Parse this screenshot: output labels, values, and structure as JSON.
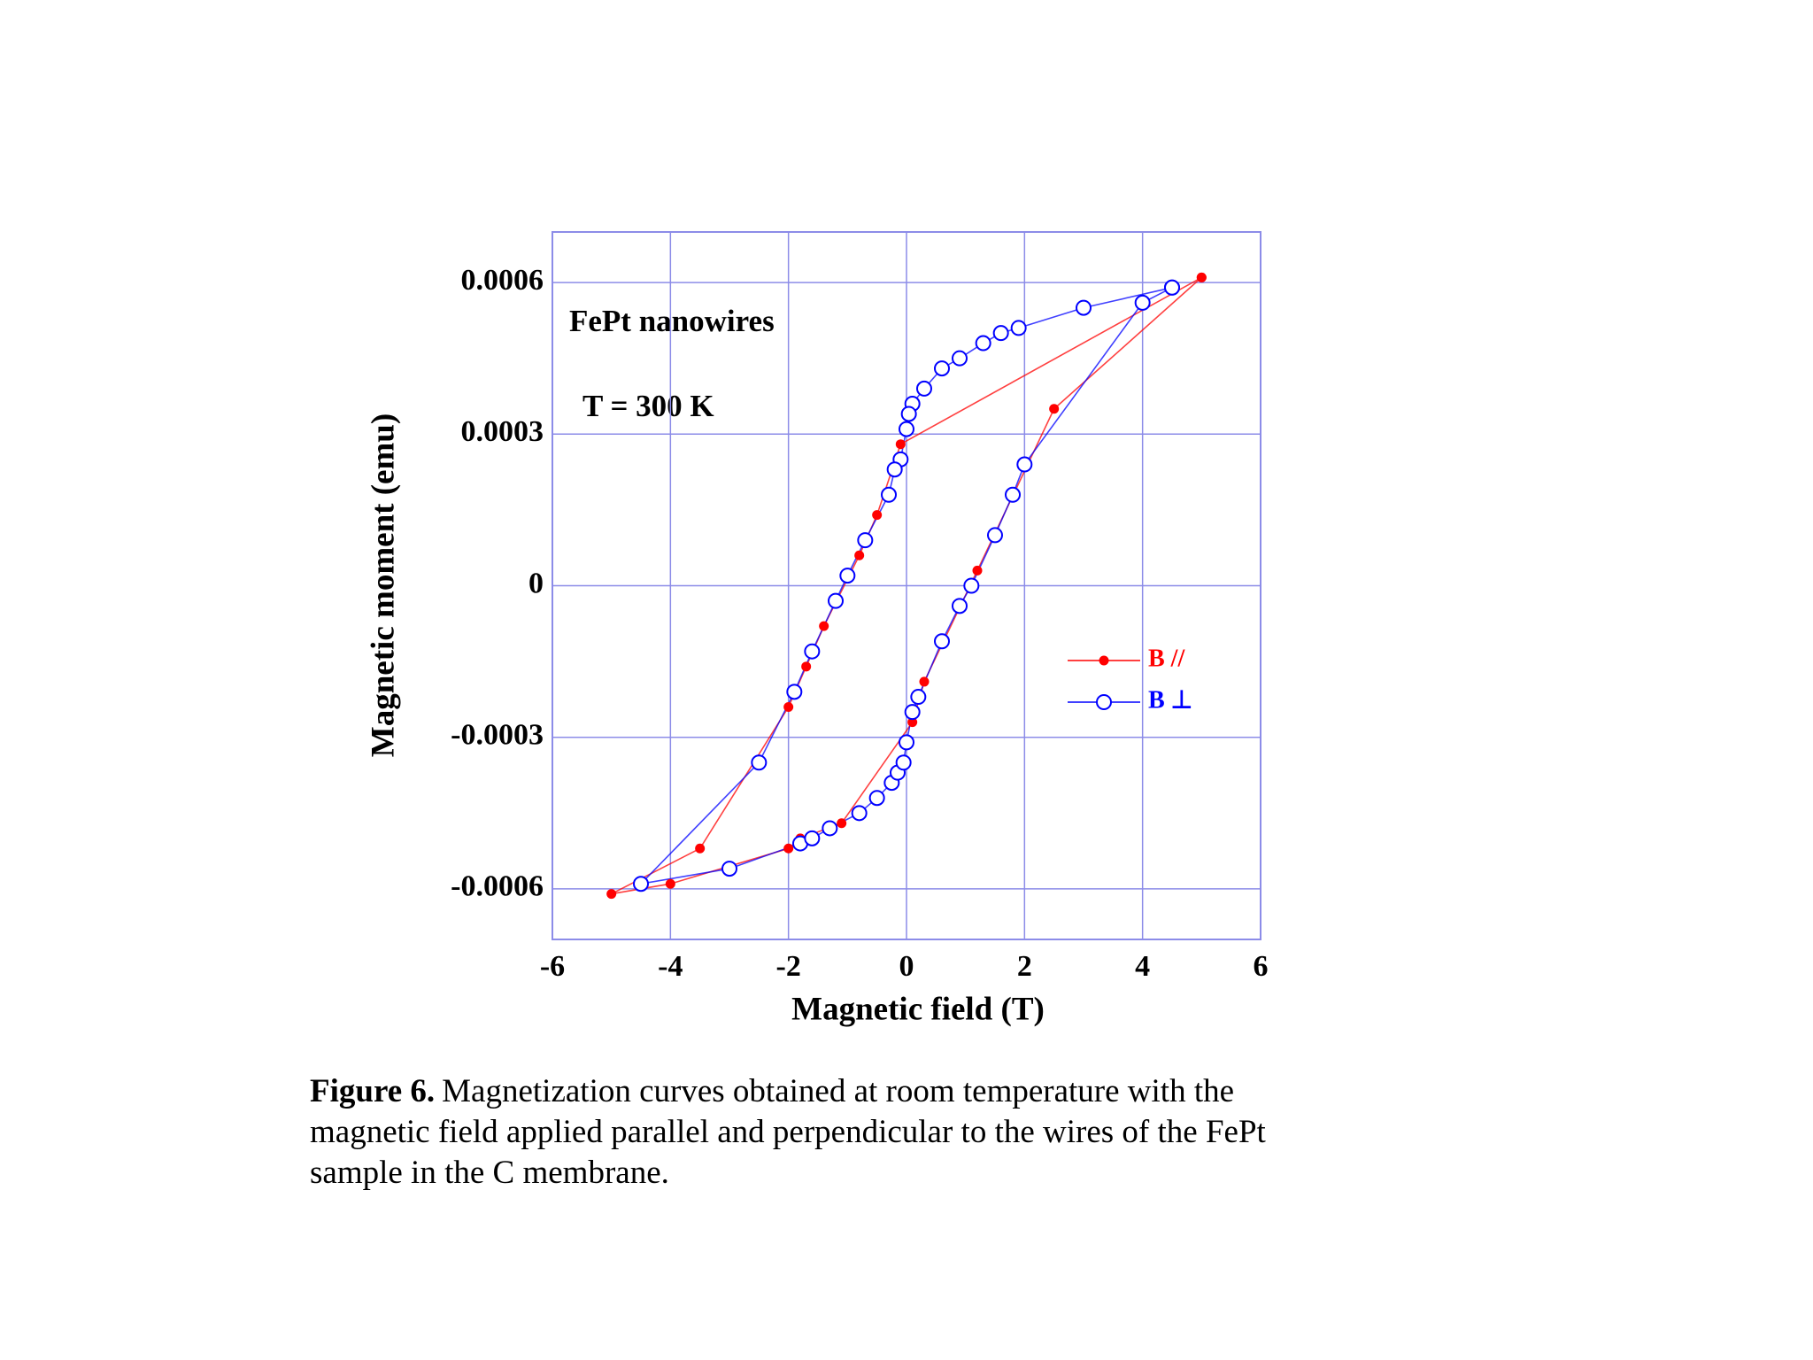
{
  "chart_data": {
    "type": "line",
    "xlabel": "Magnetic field (T)",
    "ylabel": "Magnetic moment (emu)",
    "annotations": [
      "FePt nanowires",
      "T = 300 K"
    ],
    "xlim": [
      -6,
      6
    ],
    "xticks": [
      -6,
      -4,
      -2,
      0,
      2,
      4,
      6
    ],
    "ylim": [
      -0.0007,
      0.0007
    ],
    "yticks": [
      -0.0006,
      -0.0003,
      0,
      0.0003,
      0.0006
    ],
    "grid": true,
    "legend": "right",
    "series": [
      {
        "name": "B //",
        "color": "#ff0000",
        "marker": "filled",
        "x": [
          5.0,
          -0.1,
          -0.5,
          -0.8,
          -1.4,
          -1.7,
          -2.0,
          -3.5,
          -5.0,
          -4.0,
          -2.0,
          -1.8,
          -1.1,
          0.1,
          0.3,
          1.2,
          2.5,
          5.0
        ],
        "values": [
          0.00061,
          0.00028,
          0.00014,
          6e-05,
          -8e-05,
          -0.00016,
          -0.00024,
          -0.00052,
          -0.00061,
          -0.00059,
          -0.00052,
          -0.0005,
          -0.00047,
          -0.00027,
          -0.00019,
          3e-05,
          0.00035,
          0.00061
        ]
      },
      {
        "name": "B ⊥",
        "color": "#0000ff",
        "marker": "open",
        "x": [
          4.5,
          3.0,
          1.9,
          1.6,
          1.3,
          0.9,
          0.6,
          0.3,
          0.1,
          0.04,
          0.0,
          -0.1,
          -0.2,
          -0.3,
          -0.7,
          -1.0,
          -1.2,
          -1.6,
          -1.9,
          -2.5,
          -4.5,
          -3.0,
          -1.8,
          -1.6,
          -1.3,
          -0.8,
          -0.5,
          -0.25,
          -0.15,
          -0.05,
          0.0,
          0.1,
          0.2,
          0.6,
          0.9,
          1.1,
          1.5,
          1.8,
          2.0,
          4.0,
          4.5
        ],
        "values": [
          0.00059,
          0.00055,
          0.00051,
          0.0005,
          0.00048,
          0.00045,
          0.00043,
          0.00039,
          0.00036,
          0.00034,
          0.00031,
          0.00025,
          0.00023,
          0.00018,
          9e-05,
          2e-05,
          -3e-05,
          -0.00013,
          -0.00021,
          -0.00035,
          -0.00059,
          -0.00056,
          -0.00051,
          -0.0005,
          -0.00048,
          -0.00045,
          -0.00042,
          -0.00039,
          -0.00037,
          -0.00035,
          -0.00031,
          -0.00025,
          -0.00022,
          -0.00011,
          -4e-05,
          0.0,
          0.0001,
          0.00018,
          0.00024,
          0.00056,
          0.00059
        ]
      }
    ]
  },
  "caption": {
    "label": "Figure 6.",
    "text": "Magnetization curves obtained at room temperature with the magnetic field applied parallel and perpendicular to the wires of the FePt sample in the C membrane."
  }
}
